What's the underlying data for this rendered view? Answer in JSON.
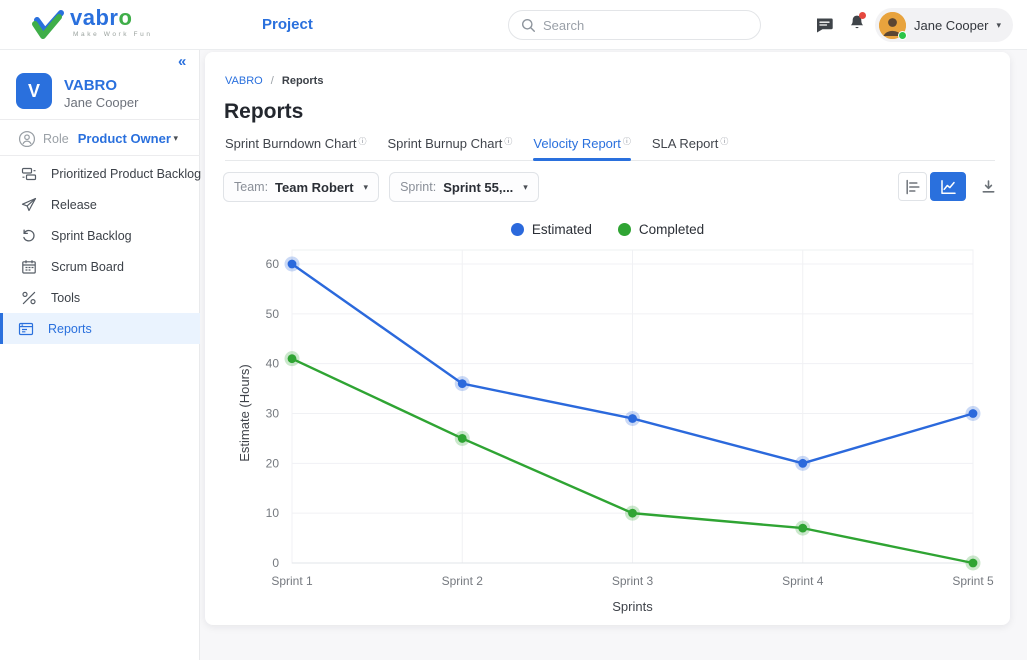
{
  "header": {
    "logo": {
      "brand_prefix": "vabr",
      "brand_o": "o",
      "tagline": "Make Work Fun"
    },
    "nav_title": "Project",
    "search": {
      "placeholder": "Search"
    },
    "user": {
      "name": "Jane Cooper"
    }
  },
  "icons": {
    "collapse": "«",
    "caret": "▾",
    "info": "ⓘ",
    "breadcrumb_separator": "/"
  },
  "sidebar": {
    "workspace": {
      "initial": "V",
      "name": "VABRO",
      "user": "Jane Cooper"
    },
    "role": {
      "label": "Role",
      "value": "Product Owner"
    },
    "items": [
      {
        "label": "Prioritized Product Backlog",
        "active": false
      },
      {
        "label": "Release",
        "active": false
      },
      {
        "label": "Sprint Backlog",
        "active": false
      },
      {
        "label": "Scrum Board",
        "active": false
      },
      {
        "label": "Tools",
        "active": false
      },
      {
        "label": "Reports",
        "active": true
      }
    ]
  },
  "main": {
    "breadcrumb": {
      "root": "VABRO",
      "current": "Reports"
    },
    "title": "Reports",
    "tabs": [
      {
        "label": "Sprint Burndown Chart",
        "active": false
      },
      {
        "label": "Sprint Burnup Chart",
        "active": false
      },
      {
        "label": "Velocity Report",
        "active": true
      },
      {
        "label": "SLA Report",
        "active": false
      }
    ],
    "filters": {
      "team": {
        "label": "Team:",
        "value": "Team Robert"
      },
      "sprint": {
        "label": "Sprint:",
        "value": "Sprint 55,..."
      }
    },
    "chart_controls": {
      "active": "line-chart"
    }
  },
  "chart_data": {
    "type": "line",
    "categories": [
      "Sprint 1",
      "Sprint 2",
      "Sprint 3",
      "Sprint 4",
      "Sprint 5"
    ],
    "series": [
      {
        "name": "Estimated",
        "color": "#2B69DC",
        "values": [
          60,
          36,
          29,
          20,
          30
        ]
      },
      {
        "name": "Completed",
        "color": "#2FA433",
        "values": [
          41,
          25,
          10,
          7,
          0
        ]
      }
    ],
    "xlabel": "Sprints",
    "ylabel": "Estimate (Hours)",
    "ylim": [
      0,
      60
    ],
    "yticks": [
      0,
      10,
      20,
      30,
      40,
      50,
      60
    ],
    "grid": true,
    "legend_position": "top"
  },
  "colors": {
    "accent": "#2A70DD",
    "estimated": "#2B69DC",
    "completed": "#2FA433",
    "notification": "#E5483F",
    "online": "#2BC548",
    "avatar_bg": "#E8A33D"
  }
}
